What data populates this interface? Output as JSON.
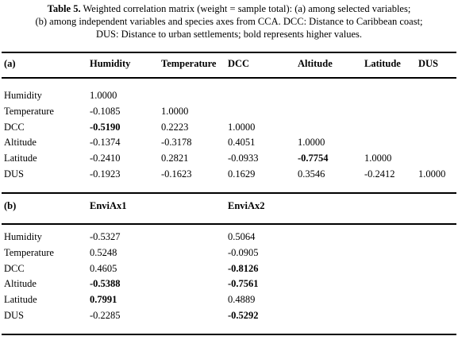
{
  "caption": {
    "label": "Table 5.",
    "lines": [
      "Weighted correlation matrix (weight = sample total): (a) among selected variables;",
      "(b) among independent variables and species axes from CCA. DCC: Distance to Caribbean coast;",
      "DUS: Distance to urban settlements; bold represents higher values."
    ]
  },
  "table_a": {
    "corner": "(a)",
    "columns": [
      "Humidity",
      "Temperature",
      "DCC",
      "Altitude",
      "Latitude",
      "DUS"
    ],
    "rows": [
      {
        "label": "Humidity",
        "cells": [
          "1.0000"
        ],
        "bold": []
      },
      {
        "label": "Temperature",
        "cells": [
          "-0.1085",
          "1.0000"
        ],
        "bold": []
      },
      {
        "label": "DCC",
        "cells": [
          "-0.5190",
          "0.2223",
          "1.0000"
        ],
        "bold": [
          0
        ]
      },
      {
        "label": "Altitude",
        "cells": [
          "-0.1374",
          "-0.3178",
          "0.4051",
          "1.0000"
        ],
        "bold": []
      },
      {
        "label": "Latitude",
        "cells": [
          "-0.2410",
          "0.2821",
          "-0.0933",
          "-0.7754",
          "1.0000"
        ],
        "bold": [
          3
        ]
      },
      {
        "label": "DUS",
        "cells": [
          "-0.1923",
          "-0.1623",
          "0.1629",
          "0.3546",
          "-0.2412",
          "1.0000"
        ],
        "bold": []
      }
    ]
  },
  "table_b": {
    "corner": "(b)",
    "columns": [
      "EnviAx1",
      "EnviAx2"
    ],
    "rows": [
      {
        "label": "Humidity",
        "cells": [
          "-0.5327",
          "0.5064"
        ],
        "bold": []
      },
      {
        "label": "Temperature",
        "cells": [
          "0.5248",
          "-0.0905"
        ],
        "bold": []
      },
      {
        "label": "DCC",
        "cells": [
          "0.4605",
          "-0.8126"
        ],
        "bold": [
          1
        ]
      },
      {
        "label": "Altitude",
        "cells": [
          "-0.5388",
          "-0.7561"
        ],
        "bold": [
          0,
          1
        ]
      },
      {
        "label": "Latitude",
        "cells": [
          "0.7991",
          "0.4889"
        ],
        "bold": [
          0
        ]
      },
      {
        "label": "DUS",
        "cells": [
          "-0.2285",
          "-0.5292"
        ],
        "bold": [
          1
        ]
      }
    ]
  }
}
